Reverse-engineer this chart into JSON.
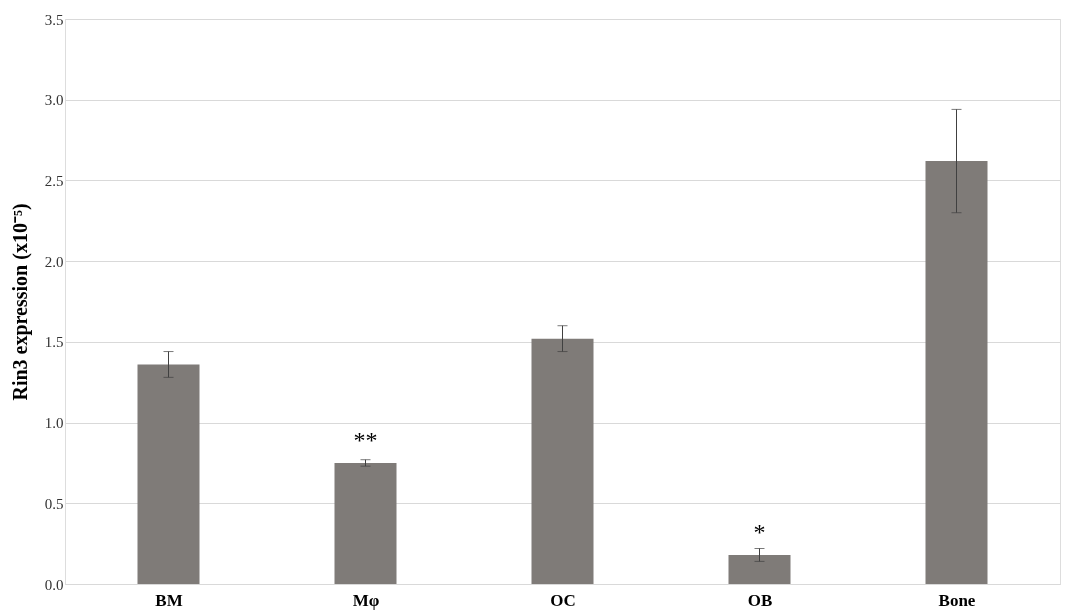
{
  "chart_data": {
    "type": "bar",
    "ylabel": "Rin3 expression (x10⁻⁵)",
    "categories": [
      "BM",
      "Mφ",
      "OC",
      "OB",
      "Bone"
    ],
    "values": [
      1.36,
      0.75,
      1.52,
      0.18,
      2.62
    ],
    "errors": [
      0.08,
      0.02,
      0.08,
      0.04,
      0.32
    ],
    "color": "#7f7b78",
    "ylim": [
      0,
      3.5
    ],
    "yticks": [
      {
        "value": 0,
        "label": "0.0"
      },
      {
        "value": 0.5,
        "label": "0.5"
      },
      {
        "value": 1,
        "label": "1.0"
      },
      {
        "value": 1.5,
        "label": "1.5"
      },
      {
        "value": 2,
        "label": "2.0"
      },
      {
        "value": 2.5,
        "label": "2.5"
      },
      {
        "value": 3,
        "label": "3.0"
      },
      {
        "value": 3.5,
        "label": "3.5"
      }
    ],
    "grid": "y",
    "annotations": [
      {
        "text": "**",
        "x": "Mφ",
        "y": 0.75
      },
      {
        "text": "*",
        "x": "OB",
        "y": 0.18
      }
    ]
  }
}
